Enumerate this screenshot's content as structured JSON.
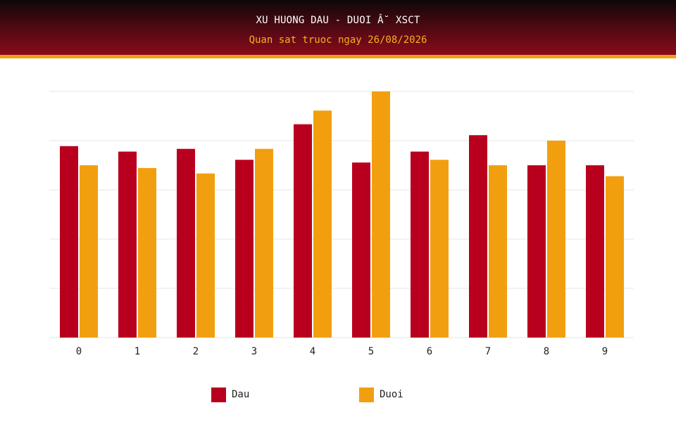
{
  "header": {
    "title": "XU HUONG DAU - DUOI Â˘ XSCT",
    "subtitle": "Quan sat truoc ngay 26/08/2026"
  },
  "colors": {
    "dau": "#b8001e",
    "duoi": "#f29f0f",
    "grid": "#e6e6e6",
    "header_top": "#0e0708",
    "header_bottom": "#8a0a1c",
    "accent_strip": "#f29f0f"
  },
  "chart_data": {
    "type": "bar",
    "title": "",
    "xlabel": "",
    "ylabel": "",
    "categories": [
      "0",
      "1",
      "2",
      "3",
      "4",
      "5",
      "6",
      "7",
      "8",
      "9"
    ],
    "series": [
      {
        "name": "Dau",
        "values": [
          14.0,
          13.6,
          13.8,
          13.0,
          15.6,
          12.8,
          13.6,
          14.8,
          12.6,
          12.6
        ]
      },
      {
        "name": "Duoi",
        "values": [
          12.6,
          12.4,
          12.0,
          13.8,
          16.6,
          18.0,
          13.0,
          12.6,
          14.4,
          11.8
        ]
      }
    ],
    "ylim": [
      0,
      18
    ],
    "y_gridlines": [
      0,
      3.6,
      7.2,
      10.8,
      14.4,
      18
    ],
    "y_tick_labels_visible": false,
    "grid": true,
    "legend": "bottom-center"
  }
}
